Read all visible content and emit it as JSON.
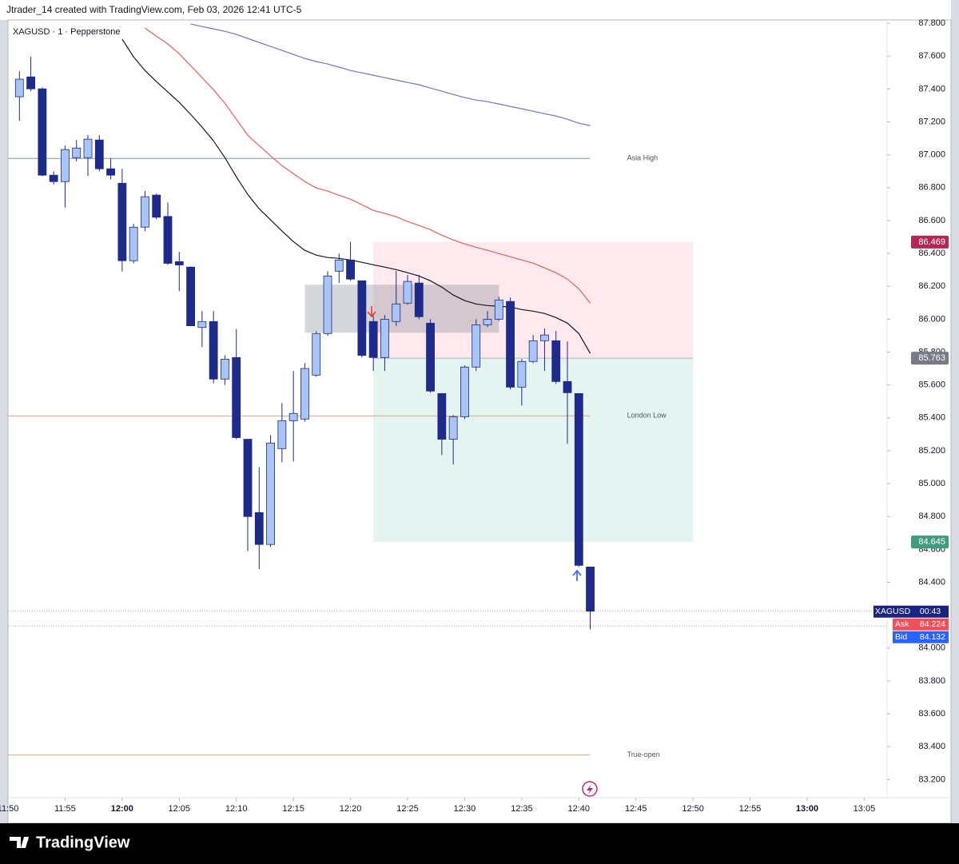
{
  "header": "Jtrader_14 created with TradingView.com, Feb 03, 2026 12:41 UTC-5",
  "brand": "TradingView",
  "chart_data": {
    "type": "candlestick",
    "title": "XAGUSD · 1 · Pepperstone",
    "x": [
      "11:51",
      "11:52",
      "11:53",
      "11:54",
      "11:55",
      "11:56",
      "11:57",
      "11:58",
      "11:59",
      "12:00",
      "12:01",
      "12:02",
      "12:03",
      "12:04",
      "12:05",
      "12:06",
      "12:07",
      "12:08",
      "12:09",
      "12:10",
      "12:11",
      "12:12",
      "12:13",
      "12:14",
      "12:15",
      "12:16",
      "12:17",
      "12:18",
      "12:19",
      "12:20",
      "12:21",
      "12:22",
      "12:23",
      "12:24",
      "12:25",
      "12:26",
      "12:27",
      "12:28",
      "12:29",
      "12:30",
      "12:31",
      "12:32",
      "12:33",
      "12:34",
      "12:35",
      "12:36",
      "12:37",
      "12:38",
      "12:39",
      "12:40",
      "12:41"
    ],
    "open": [
      87.353,
      87.474,
      87.401,
      86.876,
      86.837,
      86.983,
      86.983,
      87.09,
      86.915,
      86.827,
      86.356,
      86.56,
      86.755,
      86.625,
      86.35,
      86.317,
      85.95,
      85.986,
      85.636,
      85.767,
      85.27,
      84.824,
      84.63,
      85.213,
      85.383,
      85.393,
      85.66,
      85.913,
      86.292,
      86.36,
      86.234,
      85.986,
      85.767,
      85.986,
      86.098,
      86.22,
      85.976,
      85.548,
      85.27,
      85.407,
      85.709,
      85.966,
      86.0,
      86.108,
      85.587,
      85.743,
      85.869,
      85.869,
      85.621,
      85.548,
      84.493
    ],
    "high": [
      87.508,
      87.596,
      87.41,
      86.9,
      87.056,
      87.09,
      87.12,
      87.12,
      86.98,
      86.915,
      86.58,
      86.78,
      86.764,
      86.71,
      86.41,
      86.32,
      86.05,
      86.05,
      85.78,
      85.94,
      85.27,
      85.1,
      85.295,
      85.49,
      85.685,
      85.733,
      85.928,
      86.292,
      86.4,
      86.47,
      86.234,
      86.035,
      86.025,
      86.293,
      86.27,
      86.27,
      86.0,
      85.548,
      85.417,
      85.719,
      86.0,
      86.05,
      86.137,
      86.132,
      85.758,
      85.904,
      85.943,
      85.928,
      85.864,
      85.548,
      84.493
    ],
    "low": [
      87.207,
      87.387,
      86.87,
      86.82,
      86.68,
      86.96,
      86.87,
      86.9,
      86.85,
      86.29,
      86.34,
      86.536,
      86.608,
      86.33,
      86.17,
      85.96,
      85.83,
      85.61,
      85.6,
      85.27,
      84.59,
      84.48,
      84.615,
      85.13,
      85.135,
      85.378,
      85.65,
      85.9,
      86.22,
      86.234,
      85.767,
      85.685,
      85.685,
      85.96,
      86.088,
      86.0,
      85.553,
      85.174,
      85.116,
      85.393,
      85.685,
      85.952,
      85.99,
      85.573,
      85.475,
      85.733,
      85.685,
      85.607,
      85.242,
      84.493,
      84.114
    ],
    "close": [
      87.46,
      87.401,
      86.876,
      86.837,
      87.032,
      87.041,
      87.095,
      86.915,
      86.876,
      86.356,
      86.56,
      86.745,
      86.62,
      86.34,
      86.33,
      85.96,
      85.986,
      85.636,
      85.757,
      85.28,
      84.8,
      84.63,
      85.247,
      85.383,
      85.427,
      85.7,
      85.913,
      86.263,
      86.36,
      86.244,
      85.78,
      85.767,
      86.0,
      86.093,
      86.23,
      86.015,
      85.563,
      85.27,
      85.407,
      85.709,
      85.966,
      86.0,
      86.117,
      85.587,
      85.743,
      85.869,
      85.904,
      85.621,
      85.553,
      84.503,
      84.224
    ],
    "up_color": "#a9c5f5",
    "down_color": "#1e2a8c",
    "edge_color": "#1c2a86",
    "series": [
      {
        "color": "#131722",
        "values": [
          null,
          null,
          null,
          null,
          null,
          null,
          null,
          null,
          null,
          87.703,
          87.596,
          87.513,
          87.445,
          87.382,
          87.319,
          87.246,
          87.168,
          87.085,
          86.983,
          86.866,
          86.759,
          86.672,
          86.604,
          86.536,
          86.472,
          86.419,
          86.39,
          86.375,
          86.37,
          86.36,
          86.346,
          86.331,
          86.317,
          86.302,
          86.283,
          86.263,
          86.234,
          86.195,
          86.147,
          86.113,
          86.093,
          86.083,
          86.079,
          86.074,
          86.059,
          86.049,
          86.035,
          86.01,
          85.976,
          85.913,
          85.792
        ]
      },
      {
        "color": "#e0625a",
        "values": [
          null,
          null,
          null,
          null,
          null,
          null,
          null,
          null,
          null,
          null,
          null,
          87.771,
          87.722,
          87.674,
          87.615,
          87.542,
          87.469,
          87.396,
          87.314,
          87.216,
          87.119,
          87.056,
          86.993,
          86.934,
          86.886,
          86.837,
          86.798,
          86.779,
          86.754,
          86.73,
          86.696,
          86.662,
          86.643,
          86.623,
          86.594,
          86.57,
          86.545,
          86.511,
          86.482,
          86.458,
          86.438,
          86.419,
          86.399,
          86.38,
          86.36,
          86.341,
          86.312,
          86.283,
          86.244,
          86.185,
          86.098
        ]
      },
      {
        "color": "#6f75c4",
        "values": [
          null,
          null,
          null,
          null,
          null,
          null,
          null,
          null,
          null,
          null,
          null,
          null,
          null,
          null,
          null,
          87.795,
          87.78,
          87.766,
          87.751,
          87.732,
          87.708,
          87.683,
          87.659,
          87.635,
          87.61,
          87.586,
          87.567,
          87.552,
          87.533,
          87.513,
          87.498,
          87.484,
          87.469,
          87.455,
          87.44,
          87.426,
          87.406,
          87.387,
          87.367,
          87.348,
          87.333,
          87.323,
          87.309,
          87.294,
          87.28,
          87.265,
          87.25,
          87.236,
          87.216,
          87.192,
          87.178
        ]
      }
    ],
    "levels": [
      {
        "label": "Asia High",
        "value": 86.978,
        "color": "#7f95ad"
      },
      {
        "label": "London Low",
        "value": 85.412,
        "color": "#e6a07e"
      },
      {
        "label": "True-open",
        "value": 83.35,
        "color": "#e3ad7a"
      }
    ],
    "position": {
      "start": "12:22",
      "end": "12:50",
      "stop": 86.469,
      "entry": 85.763,
      "target": 84.645,
      "stop_color": "#b22754",
      "entry_color": "#787b86",
      "target_color": "#3f9c7f"
    },
    "box": {
      "start": "12:16",
      "end": "12:33",
      "top": 86.21,
      "bottom": 85.918
    },
    "quote": {
      "symbol": "XAGUSD",
      "countdown": "00:43",
      "ask": {
        "label": "Ask",
        "value": 84.224
      },
      "bid": {
        "label": "Bid",
        "value": 84.132
      }
    },
    "xlim": [
      "11:50",
      "13:07"
    ],
    "xticks": [
      "11:50",
      "11:55",
      "12:00",
      "12:05",
      "12:10",
      "12:15",
      "12:20",
      "12:25",
      "12:30",
      "12:35",
      "12:40",
      "12:45",
      "12:50",
      "12:55",
      "13:00",
      "13:05"
    ],
    "ylim": [
      83.09,
      87.82
    ],
    "yticks": [
      {
        "value": 87.8,
        "label": "87.800"
      },
      {
        "value": 87.6,
        "label": "87.600"
      },
      {
        "value": 87.4,
        "label": "87.400"
      },
      {
        "value": 87.2,
        "label": "87.200"
      },
      {
        "value": 87.0,
        "label": "87.000"
      },
      {
        "value": 86.8,
        "label": "86.800"
      },
      {
        "value": 86.6,
        "label": "86.600"
      },
      {
        "value": 86.4,
        "label": "86.400"
      },
      {
        "value": 86.2,
        "label": "86.200"
      },
      {
        "value": 86.0,
        "label": "86.000"
      },
      {
        "value": 85.8,
        "label": "85.800"
      },
      {
        "value": 85.6,
        "label": "85.600"
      },
      {
        "value": 85.4,
        "label": "85.400"
      },
      {
        "value": 85.2,
        "label": "85.200"
      },
      {
        "value": 85.0,
        "label": "85.000"
      },
      {
        "value": 84.8,
        "label": "84.800"
      },
      {
        "value": 84.6,
        "label": "84.600"
      },
      {
        "value": 84.4,
        "label": "84.400"
      },
      {
        "value": 84.2,
        "label": "84.200"
      },
      {
        "value": 84.0,
        "label": "84.000"
      },
      {
        "value": 83.8,
        "label": "83.800"
      },
      {
        "value": 83.6,
        "label": "83.600"
      },
      {
        "value": 83.4,
        "label": "83.400"
      },
      {
        "value": 83.2,
        "label": "83.200"
      }
    ]
  }
}
